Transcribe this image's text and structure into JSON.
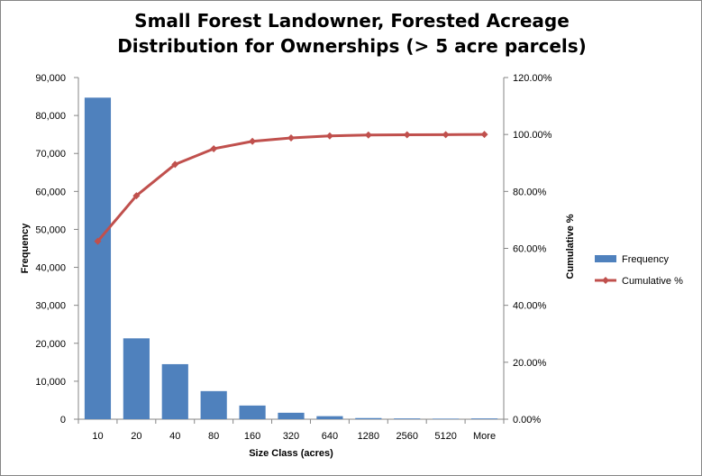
{
  "chart_data": {
    "type": "bar",
    "title_line1": "Small Forest Landowner, Forested Acreage",
    "title_line2": "Distribution for Ownerships (> 5 acre parcels)",
    "xlabel": "Size Class (acres)",
    "ylabel": "Frequency",
    "y2label": "Cumulative %",
    "categories": [
      "10",
      "20",
      "40",
      "80",
      "160",
      "320",
      "640",
      "1280",
      "2560",
      "5120",
      "More"
    ],
    "ylim": [
      0,
      90000
    ],
    "y_ticks": [
      "0",
      "10,000",
      "20,000",
      "30,000",
      "40,000",
      "50,000",
      "60,000",
      "70,000",
      "80,000",
      "90,000"
    ],
    "y2lim": [
      0,
      1.2
    ],
    "y2_ticks": [
      "0.00%",
      "20.00%",
      "40.00%",
      "60.00%",
      "80.00%",
      "100.00%",
      "120.00%"
    ],
    "legend_position": "right",
    "series": [
      {
        "name": "Frequency",
        "kind": "bar",
        "axis": "left",
        "color": "#4f81bd",
        "values": [
          84700,
          21300,
          14500,
          7400,
          3600,
          1700,
          800,
          300,
          200,
          150,
          200
        ]
      },
      {
        "name": "Cumulative %",
        "kind": "line",
        "axis": "right",
        "color": "#c0504d",
        "values": [
          0.625,
          0.785,
          0.895,
          0.95,
          0.976,
          0.988,
          0.995,
          0.998,
          0.999,
          0.9995,
          1.0
        ]
      }
    ]
  }
}
